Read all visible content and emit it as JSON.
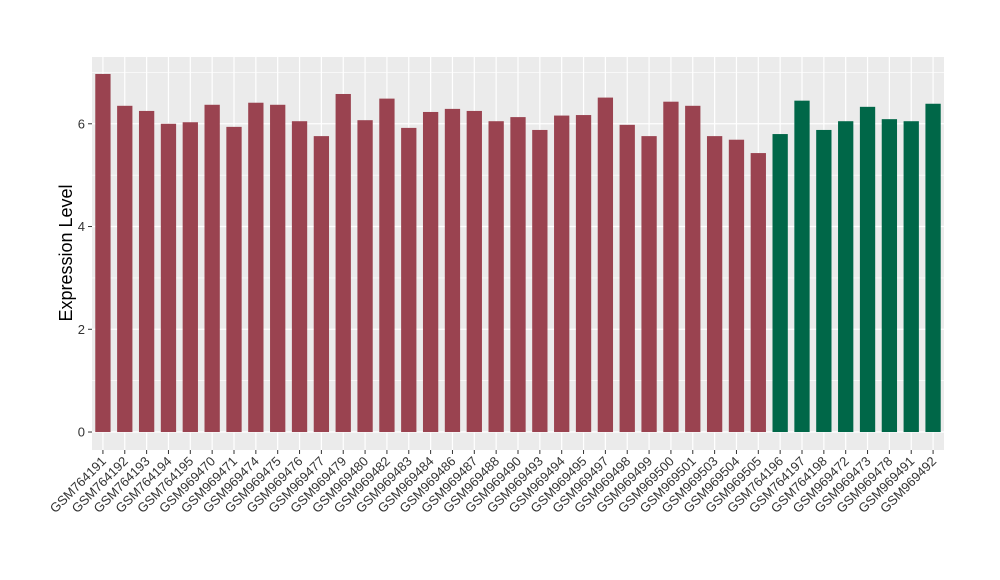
{
  "chart_data": {
    "type": "bar",
    "title": "",
    "xlabel": "",
    "ylabel": "Expression Level",
    "ylim": [
      -0.35,
      7.3
    ],
    "yticks": [
      0,
      2,
      4,
      6
    ],
    "grid": true,
    "legend": "none",
    "colors": {
      "group_a": "#9A4350",
      "group_b": "#006748",
      "panel": "#EBEBEB",
      "grid": "#FFFFFF"
    },
    "categories": [
      "GSM764191",
      "GSM764192",
      "GSM764193",
      "GSM764194",
      "GSM764195",
      "GSM969470",
      "GSM969471",
      "GSM969474",
      "GSM969475",
      "GSM969476",
      "GSM969477",
      "GSM969479",
      "GSM969480",
      "GSM969482",
      "GSM969483",
      "GSM969484",
      "GSM969486",
      "GSM969487",
      "GSM969488",
      "GSM969490",
      "GSM969493",
      "GSM969494",
      "GSM969495",
      "GSM969497",
      "GSM969498",
      "GSM969499",
      "GSM969500",
      "GSM969501",
      "GSM969503",
      "GSM969504",
      "GSM969505",
      "GSM764196",
      "GSM764197",
      "GSM764198",
      "GSM969472",
      "GSM969473",
      "GSM969478",
      "GSM969491",
      "GSM969492"
    ],
    "values": [
      6.97,
      6.35,
      6.25,
      6.0,
      6.03,
      6.37,
      5.94,
      6.41,
      6.37,
      6.05,
      5.76,
      6.58,
      6.07,
      6.49,
      5.92,
      6.23,
      6.29,
      6.25,
      6.05,
      6.13,
      5.88,
      6.16,
      6.17,
      6.51,
      5.98,
      5.76,
      6.43,
      6.35,
      5.76,
      5.69,
      5.43,
      5.8,
      6.45,
      5.88,
      6.05,
      6.33,
      6.09,
      6.05,
      6.39
    ],
    "groups": [
      "a",
      "a",
      "a",
      "a",
      "a",
      "a",
      "a",
      "a",
      "a",
      "a",
      "a",
      "a",
      "a",
      "a",
      "a",
      "a",
      "a",
      "a",
      "a",
      "a",
      "a",
      "a",
      "a",
      "a",
      "a",
      "a",
      "a",
      "a",
      "a",
      "a",
      "a",
      "b",
      "b",
      "b",
      "b",
      "b",
      "b",
      "b",
      "b"
    ]
  }
}
